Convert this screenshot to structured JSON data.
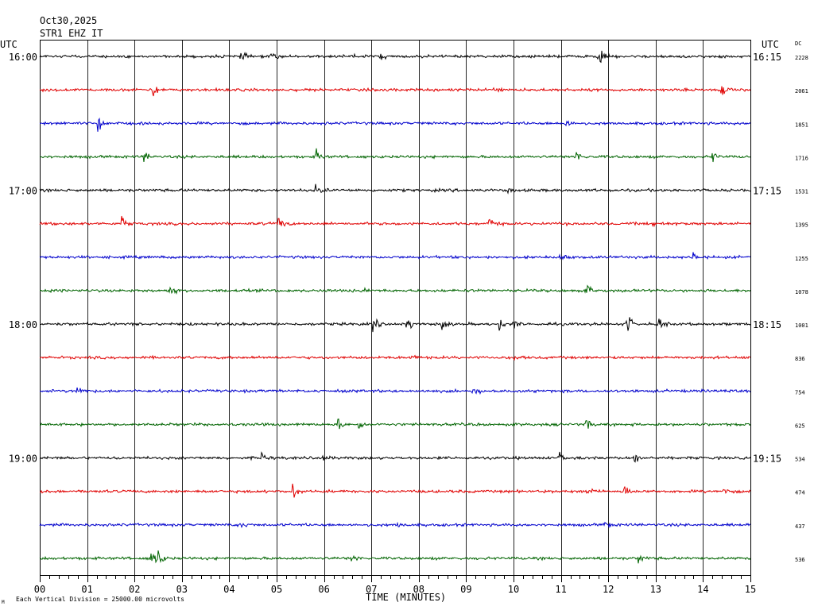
{
  "header": {
    "date": "Oct30,2025",
    "station": "STR1 EHZ IT"
  },
  "labels": {
    "utc_left": "UTC",
    "utc_right": "UTC",
    "dc": "DC",
    "x_axis": "TIME (MINUTES)",
    "footnote": "Each Vertical Division = 25000.00 microvolts",
    "footnote_mark": "M"
  },
  "colors": {
    "traces": [
      "#000000",
      "#e00000",
      "#0000cc",
      "#006400"
    ],
    "grid": "#000000",
    "background": "#ffffff"
  },
  "chart_data": {
    "type": "line",
    "title": "",
    "xlabel": "TIME (MINUTES)",
    "ylabel": "",
    "xlim": [
      0,
      15
    ],
    "x_ticks": [
      "00",
      "01",
      "02",
      "03",
      "04",
      "05",
      "06",
      "07",
      "08",
      "09",
      "10",
      "11",
      "12",
      "13",
      "14",
      "15"
    ],
    "grid": true,
    "left_time_labels": [
      "16:00",
      "",
      "",
      "",
      "17:00",
      "",
      "",
      "",
      "18:00",
      "",
      "",
      "",
      "19:00",
      "",
      "",
      ""
    ],
    "right_time_labels": [
      "16:15",
      "",
      "",
      "",
      "17:15",
      "",
      "",
      "",
      "18:15",
      "",
      "",
      "",
      "19:15",
      "",
      "",
      ""
    ],
    "dc_offsets": [
      "2228",
      "2061",
      "1851",
      "1716",
      "1531",
      "1395",
      "1255",
      "1078",
      "1001",
      "836",
      "754",
      "625",
      "534",
      "474",
      "437",
      "536"
    ],
    "series_colors": [
      "black",
      "red",
      "blue",
      "green",
      "black",
      "red",
      "blue",
      "green",
      "black",
      "red",
      "blue",
      "green",
      "black",
      "red",
      "blue",
      "green"
    ],
    "events": [
      [
        [
          4.25,
          1.0
        ],
        [
          4.9,
          1.0
        ],
        [
          6.6,
          0.8
        ],
        [
          7.2,
          0.8
        ],
        [
          11.8,
          2.0
        ]
      ],
      [
        [
          2.4,
          1.6
        ],
        [
          9.6,
          0.6
        ],
        [
          14.4,
          1.6
        ]
      ],
      [
        [
          1.25,
          2.3
        ],
        [
          11.1,
          1.2
        ]
      ],
      [
        [
          2.2,
          1.4
        ],
        [
          5.85,
          1.4
        ],
        [
          11.35,
          1.2
        ],
        [
          14.2,
          1.3
        ]
      ],
      [
        [
          5.85,
          1.4
        ],
        [
          9.9,
          0.6
        ]
      ],
      [
        [
          1.75,
          1.6
        ],
        [
          5.05,
          2.0
        ],
        [
          9.5,
          1.8
        ],
        [
          12.95,
          1.6
        ]
      ],
      [
        [
          11.0,
          0.8
        ],
        [
          13.8,
          1.6
        ]
      ],
      [
        [
          2.75,
          1.6
        ],
        [
          6.8,
          0.8
        ],
        [
          11.55,
          2.0
        ]
      ],
      [
        [
          7.05,
          1.4
        ],
        [
          7.75,
          2.0
        ],
        [
          8.5,
          1.2
        ],
        [
          9.7,
          1.4
        ],
        [
          10.0,
          1.0
        ],
        [
          12.4,
          3.0
        ],
        [
          13.1,
          1.4
        ]
      ],
      [
        [
          7.8,
          0.8
        ],
        [
          10.0,
          0.8
        ]
      ],
      [
        [
          0.8,
          1.6
        ],
        [
          9.15,
          1.2
        ]
      ],
      [
        [
          6.3,
          1.2
        ],
        [
          6.75,
          1.2
        ],
        [
          11.55,
          1.0
        ]
      ],
      [
        [
          4.7,
          1.0
        ],
        [
          6.0,
          0.6
        ],
        [
          11.0,
          1.4
        ],
        [
          12.55,
          1.4
        ]
      ],
      [
        [
          5.35,
          1.6
        ],
        [
          11.55,
          1.6
        ],
        [
          12.35,
          1.4
        ],
        [
          14.45,
          1.2
        ]
      ],
      [
        [
          4.25,
          1.0
        ],
        [
          7.55,
          0.6
        ],
        [
          11.95,
          1.0
        ]
      ],
      [
        [
          2.35,
          3.4
        ],
        [
          2.5,
          2.0
        ],
        [
          6.6,
          0.8
        ],
        [
          12.65,
          1.2
        ]
      ]
    ]
  }
}
